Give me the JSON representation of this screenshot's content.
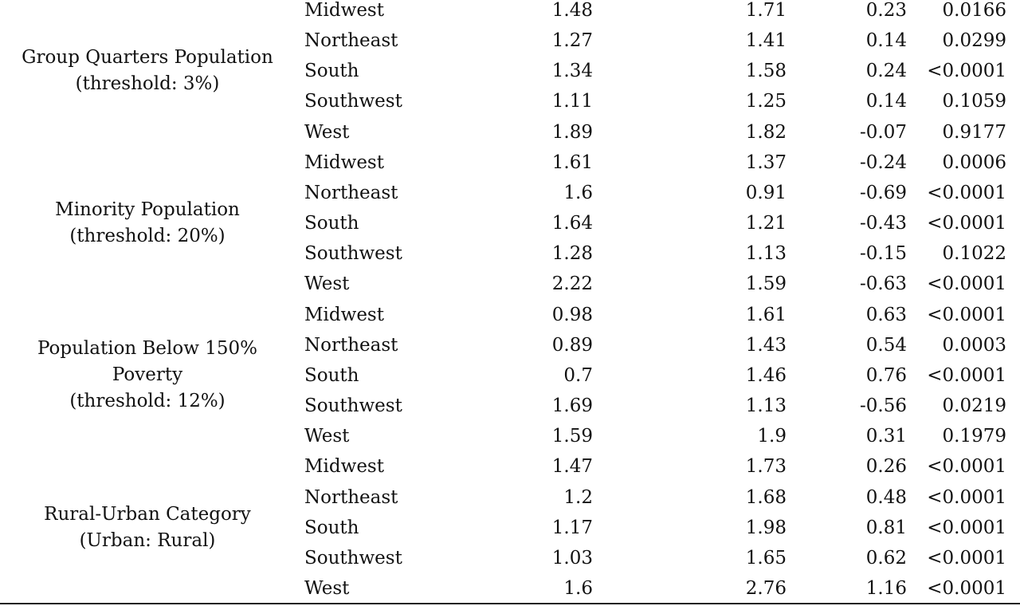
{
  "table": {
    "groups": [
      {
        "label": [
          "Group Quarters Population",
          "(threshold: 3%)"
        ],
        "rows": [
          [
            "Midwest",
            "1.48",
            "1.71",
            "0.23",
            "0.0166"
          ],
          [
            "Northeast",
            "1.27",
            "1.41",
            "0.14",
            "0.0299"
          ],
          [
            "South",
            "1.34",
            "1.58",
            "0.24",
            "<0.0001"
          ],
          [
            "Southwest",
            "1.11",
            "1.25",
            "0.14",
            "0.1059"
          ],
          [
            "West",
            "1.89",
            "1.82",
            "-0.07",
            "0.9177"
          ]
        ]
      },
      {
        "label": [
          "Minority Population",
          "(threshold: 20%)"
        ],
        "rows": [
          [
            "Midwest",
            "1.61",
            "1.37",
            "-0.24",
            "0.0006"
          ],
          [
            "Northeast",
            "1.6",
            "0.91",
            "-0.69",
            "<0.0001"
          ],
          [
            "South",
            "1.64",
            "1.21",
            "-0.43",
            "<0.0001"
          ],
          [
            "Southwest",
            "1.28",
            "1.13",
            "-0.15",
            "0.1022"
          ],
          [
            "West",
            "2.22",
            "1.59",
            "-0.63",
            "<0.0001"
          ]
        ]
      },
      {
        "label": [
          "Population Below 150%",
          "Poverty",
          "(threshold: 12%)"
        ],
        "rows": [
          [
            "Midwest",
            "0.98",
            "1.61",
            "0.63",
            "<0.0001"
          ],
          [
            "Northeast",
            "0.89",
            "1.43",
            "0.54",
            "0.0003"
          ],
          [
            "South",
            "0.7",
            "1.46",
            "0.76",
            "<0.0001"
          ],
          [
            "Southwest",
            "1.69",
            "1.13",
            "-0.56",
            "0.0219"
          ],
          [
            "West",
            "1.59",
            "1.9",
            "0.31",
            "0.1979"
          ]
        ]
      },
      {
        "label": [
          "Rural-Urban Category",
          "(Urban: Rural)"
        ],
        "rows": [
          [
            "Midwest",
            "1.47",
            "1.73",
            "0.26",
            "<0.0001"
          ],
          [
            "Northeast",
            "1.2",
            "1.68",
            "0.48",
            "<0.0001"
          ],
          [
            "South",
            "1.17",
            "1.98",
            "0.81",
            "<0.0001"
          ],
          [
            "Southwest",
            "1.03",
            "1.65",
            "0.62",
            "<0.0001"
          ],
          [
            "West",
            "1.6",
            "2.76",
            "1.16",
            "<0.0001"
          ]
        ]
      }
    ]
  }
}
